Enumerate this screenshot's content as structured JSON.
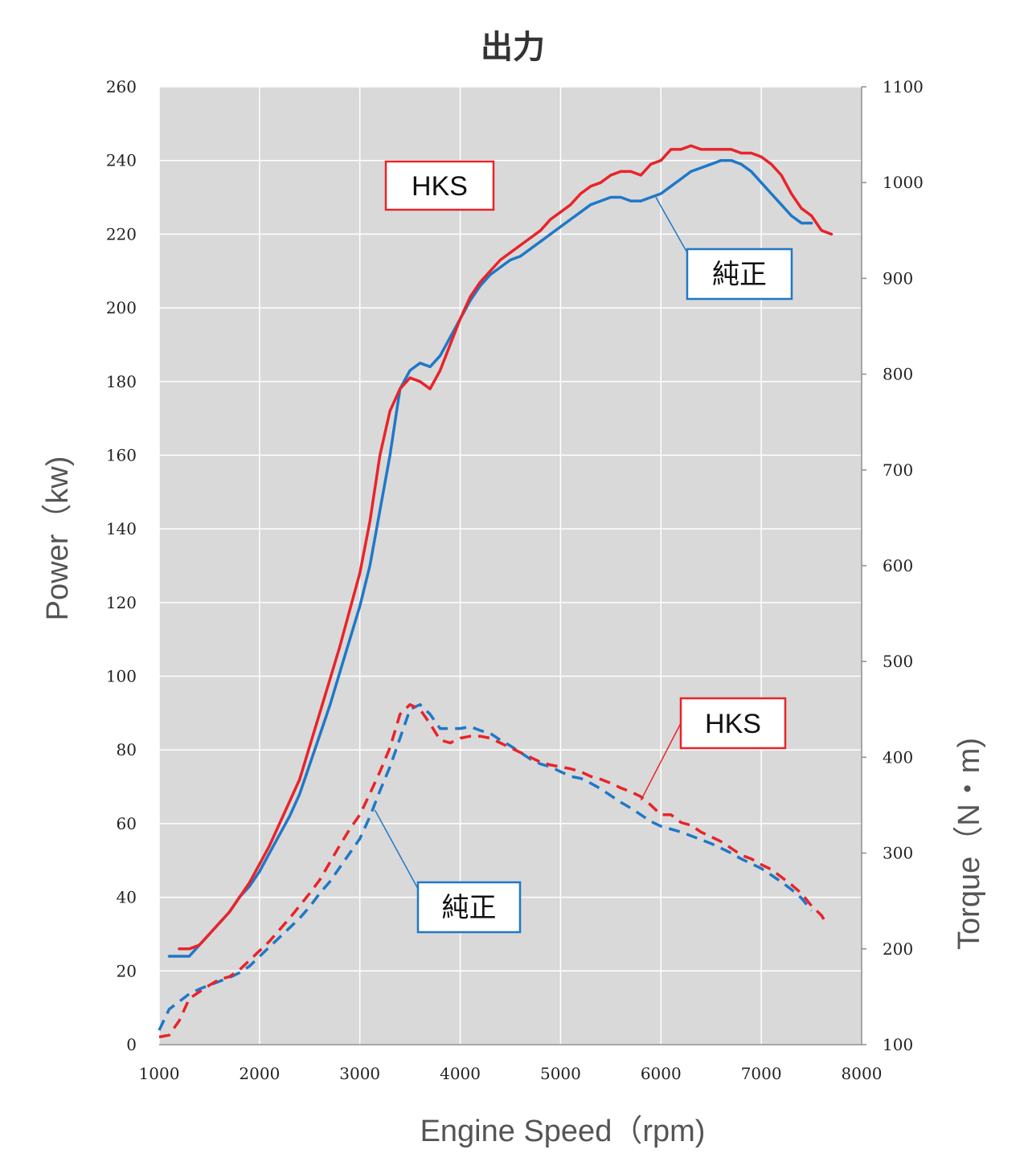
{
  "colors": {
    "hks": "#e8242a",
    "stock": "#1f78c8",
    "plot_bg": "#d9d9d9",
    "grid": "#ffffff"
  },
  "chart_data": {
    "type": "line",
    "title": "出力",
    "xlabel": "Engine Speed（rpm)",
    "ylabel": "Power（kw)",
    "y2label": "Torque（N・m)",
    "xlim": [
      1000,
      8000
    ],
    "ylim": [
      0,
      260
    ],
    "y2lim": [
      100,
      1100
    ],
    "xticks": [
      "1000",
      "2000",
      "3000",
      "4000",
      "5000",
      "6000",
      "7000",
      "8000"
    ],
    "yticks": [
      "0",
      "20",
      "40",
      "60",
      "80",
      "100",
      "120",
      "140",
      "160",
      "180",
      "200",
      "220",
      "240",
      "260"
    ],
    "y2ticks": [
      "100",
      "200",
      "300",
      "400",
      "500",
      "600",
      "700",
      "800",
      "900",
      "1000",
      "1100"
    ],
    "grid": true,
    "series": [
      {
        "name": "HKS",
        "axis": "power",
        "style": "solid",
        "color": "#e8242a",
        "x": [
          1200,
          1300,
          1400,
          1500,
          1600,
          1700,
          1800,
          1900,
          2000,
          2100,
          2200,
          2300,
          2400,
          2500,
          2600,
          2700,
          2800,
          2900,
          3000,
          3100,
          3200,
          3300,
          3400,
          3500,
          3600,
          3700,
          3800,
          3900,
          4000,
          4100,
          4200,
          4300,
          4400,
          4500,
          4600,
          4700,
          4800,
          4900,
          5000,
          5100,
          5200,
          5300,
          5400,
          5500,
          5600,
          5700,
          5800,
          5900,
          6000,
          6100,
          6200,
          6300,
          6400,
          6500,
          6600,
          6700,
          6800,
          6900,
          7000,
          7100,
          7200,
          7300,
          7400,
          7500,
          7600,
          7700
        ],
        "values": [
          26,
          26,
          27,
          30,
          33,
          36,
          40,
          44,
          49,
          54,
          60,
          66,
          72,
          81,
          90,
          99,
          108,
          118,
          128,
          142,
          160,
          172,
          178,
          181,
          180,
          178,
          183,
          190,
          197,
          203,
          207,
          210,
          213,
          215,
          217,
          219,
          221,
          224,
          226,
          228,
          231,
          233,
          234,
          236,
          237,
          237,
          236,
          239,
          240,
          243,
          243,
          244,
          243,
          243,
          243,
          243,
          242,
          242,
          241,
          239,
          236,
          231,
          227,
          225,
          221,
          220
        ]
      },
      {
        "name": "純正",
        "axis": "power",
        "style": "solid",
        "color": "#1f78c8",
        "x": [
          1100,
          1200,
          1300,
          1400,
          1500,
          1600,
          1700,
          1800,
          1900,
          2000,
          2100,
          2200,
          2300,
          2400,
          2500,
          2600,
          2700,
          2800,
          2900,
          3000,
          3100,
          3200,
          3300,
          3400,
          3500,
          3600,
          3700,
          3800,
          3900,
          4000,
          4100,
          4200,
          4300,
          4400,
          4500,
          4600,
          4700,
          4800,
          4900,
          5000,
          5100,
          5200,
          5300,
          5400,
          5500,
          5600,
          5700,
          5800,
          5900,
          6000,
          6100,
          6200,
          6300,
          6400,
          6500,
          6600,
          6700,
          6800,
          6900,
          7000,
          7100,
          7200,
          7300,
          7400,
          7500
        ],
        "values": [
          24,
          24,
          24,
          27,
          30,
          33,
          36,
          40,
          43,
          47,
          52,
          57,
          62,
          68,
          76,
          84,
          92,
          101,
          110,
          119,
          130,
          145,
          160,
          178,
          183,
          185,
          184,
          187,
          192,
          197,
          202,
          206,
          209,
          211,
          213,
          214,
          216,
          218,
          220,
          222,
          224,
          226,
          228,
          229,
          230,
          230,
          229,
          229,
          230,
          231,
          233,
          235,
          237,
          238,
          239,
          240,
          240,
          239,
          237,
          234,
          231,
          228,
          225,
          223,
          223
        ]
      },
      {
        "name": "HKS",
        "axis": "torque",
        "style": "dashed",
        "color": "#e8242a",
        "x": [
          1000,
          1100,
          1200,
          1300,
          1400,
          1500,
          1600,
          1700,
          1800,
          1900,
          2000,
          2100,
          2200,
          2300,
          2400,
          2500,
          2600,
          2700,
          2800,
          2900,
          3000,
          3100,
          3200,
          3300,
          3400,
          3500,
          3600,
          3700,
          3800,
          3900,
          4000,
          4100,
          4200,
          4300,
          4400,
          4500,
          4600,
          4700,
          4800,
          4900,
          5000,
          5100,
          5200,
          5300,
          5400,
          5500,
          5600,
          5700,
          5800,
          5900,
          6000,
          6100,
          6200,
          6300,
          6400,
          6500,
          6600,
          6700,
          6800,
          6900,
          7000,
          7100,
          7200,
          7300,
          7400,
          7500,
          7600,
          7650
        ],
        "values": [
          108,
          110,
          125,
          148,
          155,
          162,
          168,
          171,
          178,
          188,
          198,
          208,
          220,
          232,
          245,
          258,
          272,
          290,
          308,
          325,
          340,
          362,
          385,
          410,
          445,
          455,
          450,
          435,
          418,
          415,
          420,
          422,
          422,
          420,
          415,
          410,
          405,
          400,
          395,
          392,
          390,
          388,
          385,
          380,
          377,
          373,
          368,
          364,
          359,
          350,
          340,
          340,
          332,
          329,
          322,
          317,
          312,
          305,
          298,
          294,
          288,
          283,
          275,
          267,
          258,
          245,
          235,
          226
        ]
      },
      {
        "name": "純正",
        "axis": "torque",
        "style": "dashed",
        "color": "#1f78c8",
        "x": [
          1000,
          1100,
          1200,
          1300,
          1400,
          1500,
          1600,
          1700,
          1800,
          1900,
          2000,
          2100,
          2200,
          2300,
          2400,
          2500,
          2600,
          2700,
          2800,
          2900,
          3000,
          3100,
          3200,
          3300,
          3400,
          3500,
          3600,
          3700,
          3800,
          3900,
          4000,
          4100,
          4200,
          4300,
          4400,
          4500,
          4600,
          4700,
          4800,
          4900,
          5000,
          5100,
          5200,
          5300,
          5400,
          5500,
          5600,
          5700,
          5800,
          5900,
          6000,
          6100,
          6200,
          6300,
          6400,
          6500,
          6600,
          6700,
          6800,
          6900,
          7000,
          7100,
          7200,
          7300,
          7400,
          7500
        ],
        "values": [
          115,
          137,
          145,
          153,
          158,
          162,
          166,
          170,
          175,
          182,
          192,
          202,
          212,
          222,
          232,
          244,
          258,
          270,
          285,
          300,
          315,
          338,
          365,
          390,
          420,
          450,
          455,
          445,
          430,
          430,
          430,
          432,
          428,
          425,
          418,
          412,
          405,
          398,
          393,
          390,
          385,
          380,
          378,
          373,
          367,
          360,
          353,
          347,
          340,
          333,
          328,
          325,
          322,
          318,
          314,
          310,
          305,
          300,
          294,
          289,
          284,
          277,
          270,
          262,
          253,
          240
        ]
      }
    ]
  },
  "callouts": [
    {
      "label": "HKS",
      "color": "#e8242a"
    },
    {
      "label": "純正",
      "color": "#1f78c8"
    },
    {
      "label": "HKS",
      "color": "#e8242a"
    },
    {
      "label": "純正",
      "color": "#1f78c8"
    }
  ]
}
